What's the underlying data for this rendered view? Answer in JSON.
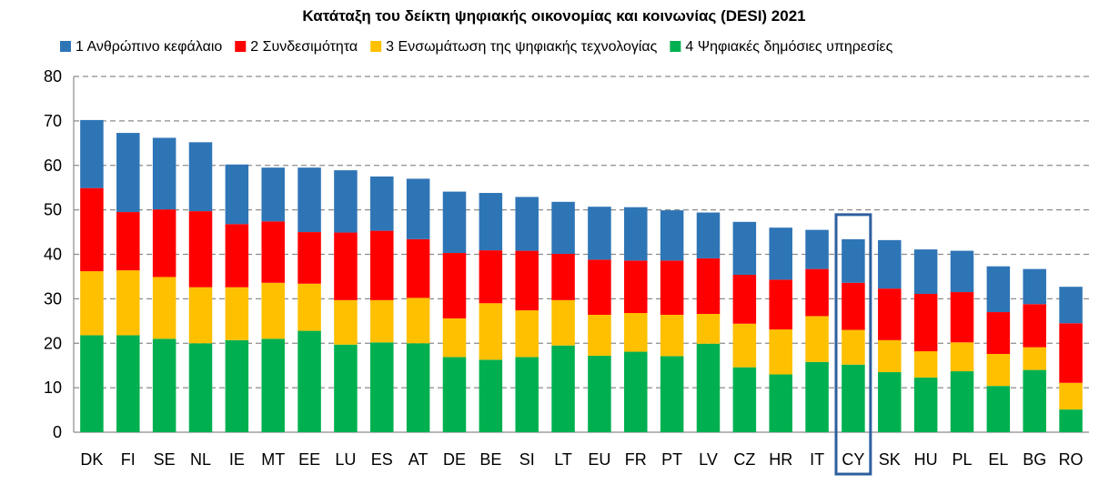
{
  "chart_data": {
    "type": "bar",
    "stacked": true,
    "title": "Κατάταξη του δείκτη ψηφιακής οικονομίας και κοινωνίας (DESI) 2021",
    "xlabel": "",
    "ylabel": "",
    "ylim": [
      0,
      80
    ],
    "yticks": [
      0,
      10,
      20,
      30,
      40,
      50,
      60,
      70,
      80
    ],
    "grid": true,
    "legend_position": "top",
    "highlight": "CY",
    "highlight_color": "#2e5f9e",
    "categories": [
      "DK",
      "FI",
      "SE",
      "NL",
      "IE",
      "MT",
      "EE",
      "LU",
      "ES",
      "AT",
      "DE",
      "BE",
      "SI",
      "LT",
      "EU",
      "FR",
      "PT",
      "LV",
      "CZ",
      "HR",
      "IT",
      "CY",
      "SK",
      "HU",
      "PL",
      "EL",
      "BG",
      "RO"
    ],
    "series": [
      {
        "name": "4 Ψηφιακές δημόσιες υπηρεσίες",
        "color": "#00b050",
        "values": [
          21.8,
          21.8,
          21.0,
          20.0,
          20.7,
          21.0,
          22.8,
          19.7,
          20.2,
          20.0,
          16.9,
          16.3,
          16.9,
          19.5,
          17.2,
          18.1,
          17.1,
          19.9,
          14.6,
          13.0,
          15.8,
          15.2,
          13.5,
          12.3,
          13.7,
          10.4,
          14.0,
          5.1
        ]
      },
      {
        "name": "3 Ενσωμάτωση της ψηφιακής τεχνολογίας",
        "color": "#ffc000",
        "values": [
          14.4,
          14.6,
          13.9,
          12.6,
          11.9,
          12.6,
          10.6,
          10.0,
          9.5,
          10.2,
          8.7,
          12.7,
          10.5,
          10.2,
          9.2,
          8.7,
          9.3,
          6.7,
          9.8,
          10.1,
          10.3,
          7.8,
          7.2,
          5.9,
          6.5,
          7.2,
          5.1,
          6.0
        ]
      },
      {
        "name": "2 Συνδεσιμότητα",
        "color": "#ff0000",
        "values": [
          18.7,
          13.1,
          15.2,
          17.1,
          14.2,
          13.8,
          11.6,
          15.2,
          15.6,
          13.2,
          14.7,
          11.9,
          13.4,
          10.4,
          12.4,
          11.8,
          12.2,
          12.5,
          11.0,
          11.2,
          10.6,
          10.6,
          11.6,
          12.9,
          11.3,
          9.4,
          9.7,
          13.4
        ]
      },
      {
        "name": "1 Ανθρώπινο κεφάλαιο",
        "color": "#2e75b6",
        "values": [
          15.3,
          17.8,
          16.1,
          15.5,
          13.4,
          12.1,
          14.5,
          14.0,
          12.2,
          13.6,
          13.8,
          12.9,
          12.1,
          11.7,
          11.9,
          12.0,
          11.3,
          10.3,
          11.9,
          11.7,
          8.8,
          9.8,
          10.9,
          10.0,
          9.3,
          10.3,
          7.9,
          8.2
        ]
      }
    ],
    "legend_order": [
      "1 Ανθρώπινο κεφάλαιο",
      "2 Συνδεσιμότητα",
      "3 Ενσωμάτωση της ψηφιακής τεχνολογίας",
      "4 Ψηφιακές δημόσιες υπηρεσίες"
    ]
  }
}
